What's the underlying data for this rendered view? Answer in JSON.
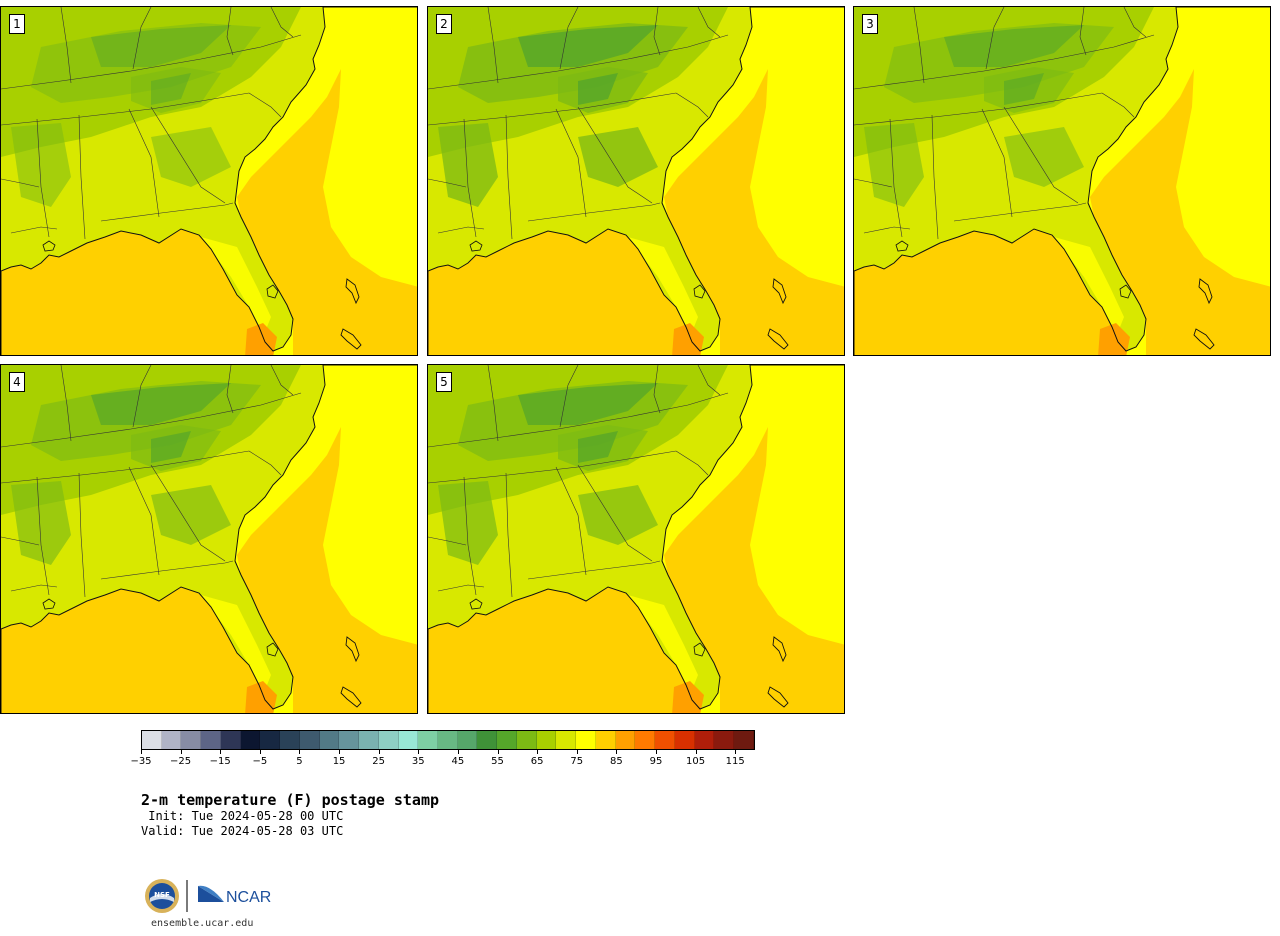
{
  "panels": [
    {
      "label": "1",
      "variant": 0
    },
    {
      "label": "2",
      "variant": 1
    },
    {
      "label": "3",
      "variant": 2
    },
    {
      "label": "4",
      "variant": 3
    },
    {
      "label": "5",
      "variant": 4
    }
  ],
  "colorbar": {
    "colors": [
      "#dcdfe6",
      "#b0b4c6",
      "#878ca4",
      "#5d6586",
      "#2e3656",
      "#0c1630",
      "#172842",
      "#2a4258",
      "#3e5a6e",
      "#527a86",
      "#66949c",
      "#7ab2b0",
      "#8ecfc4",
      "#98e8d6",
      "#7ecfa4",
      "#68b884",
      "#56a66a",
      "#3f9238",
      "#55a62a",
      "#7cba14",
      "#a8d000",
      "#d8e800",
      "#ffff00",
      "#ffd000",
      "#ffa000",
      "#ff7a00",
      "#f05000",
      "#d83000",
      "#b01e0a",
      "#8a1a0e",
      "#6e1a10"
    ],
    "tick_values": [
      "−35",
      "−25",
      "−15",
      "−5",
      "5",
      "15",
      "25",
      "35",
      "45",
      "55",
      "65",
      "75",
      "85",
      "95",
      "105",
      "115"
    ]
  },
  "title": "2-m temperature (F) postage stamp",
  "init": " Init: Tue 2024-05-28 00 UTC",
  "valid": "Valid: Tue 2024-05-28 03 UTC",
  "logos": {
    "nsf": "NSF",
    "ncar": "NCAR"
  },
  "site": "ensemble.ucar.edu"
}
